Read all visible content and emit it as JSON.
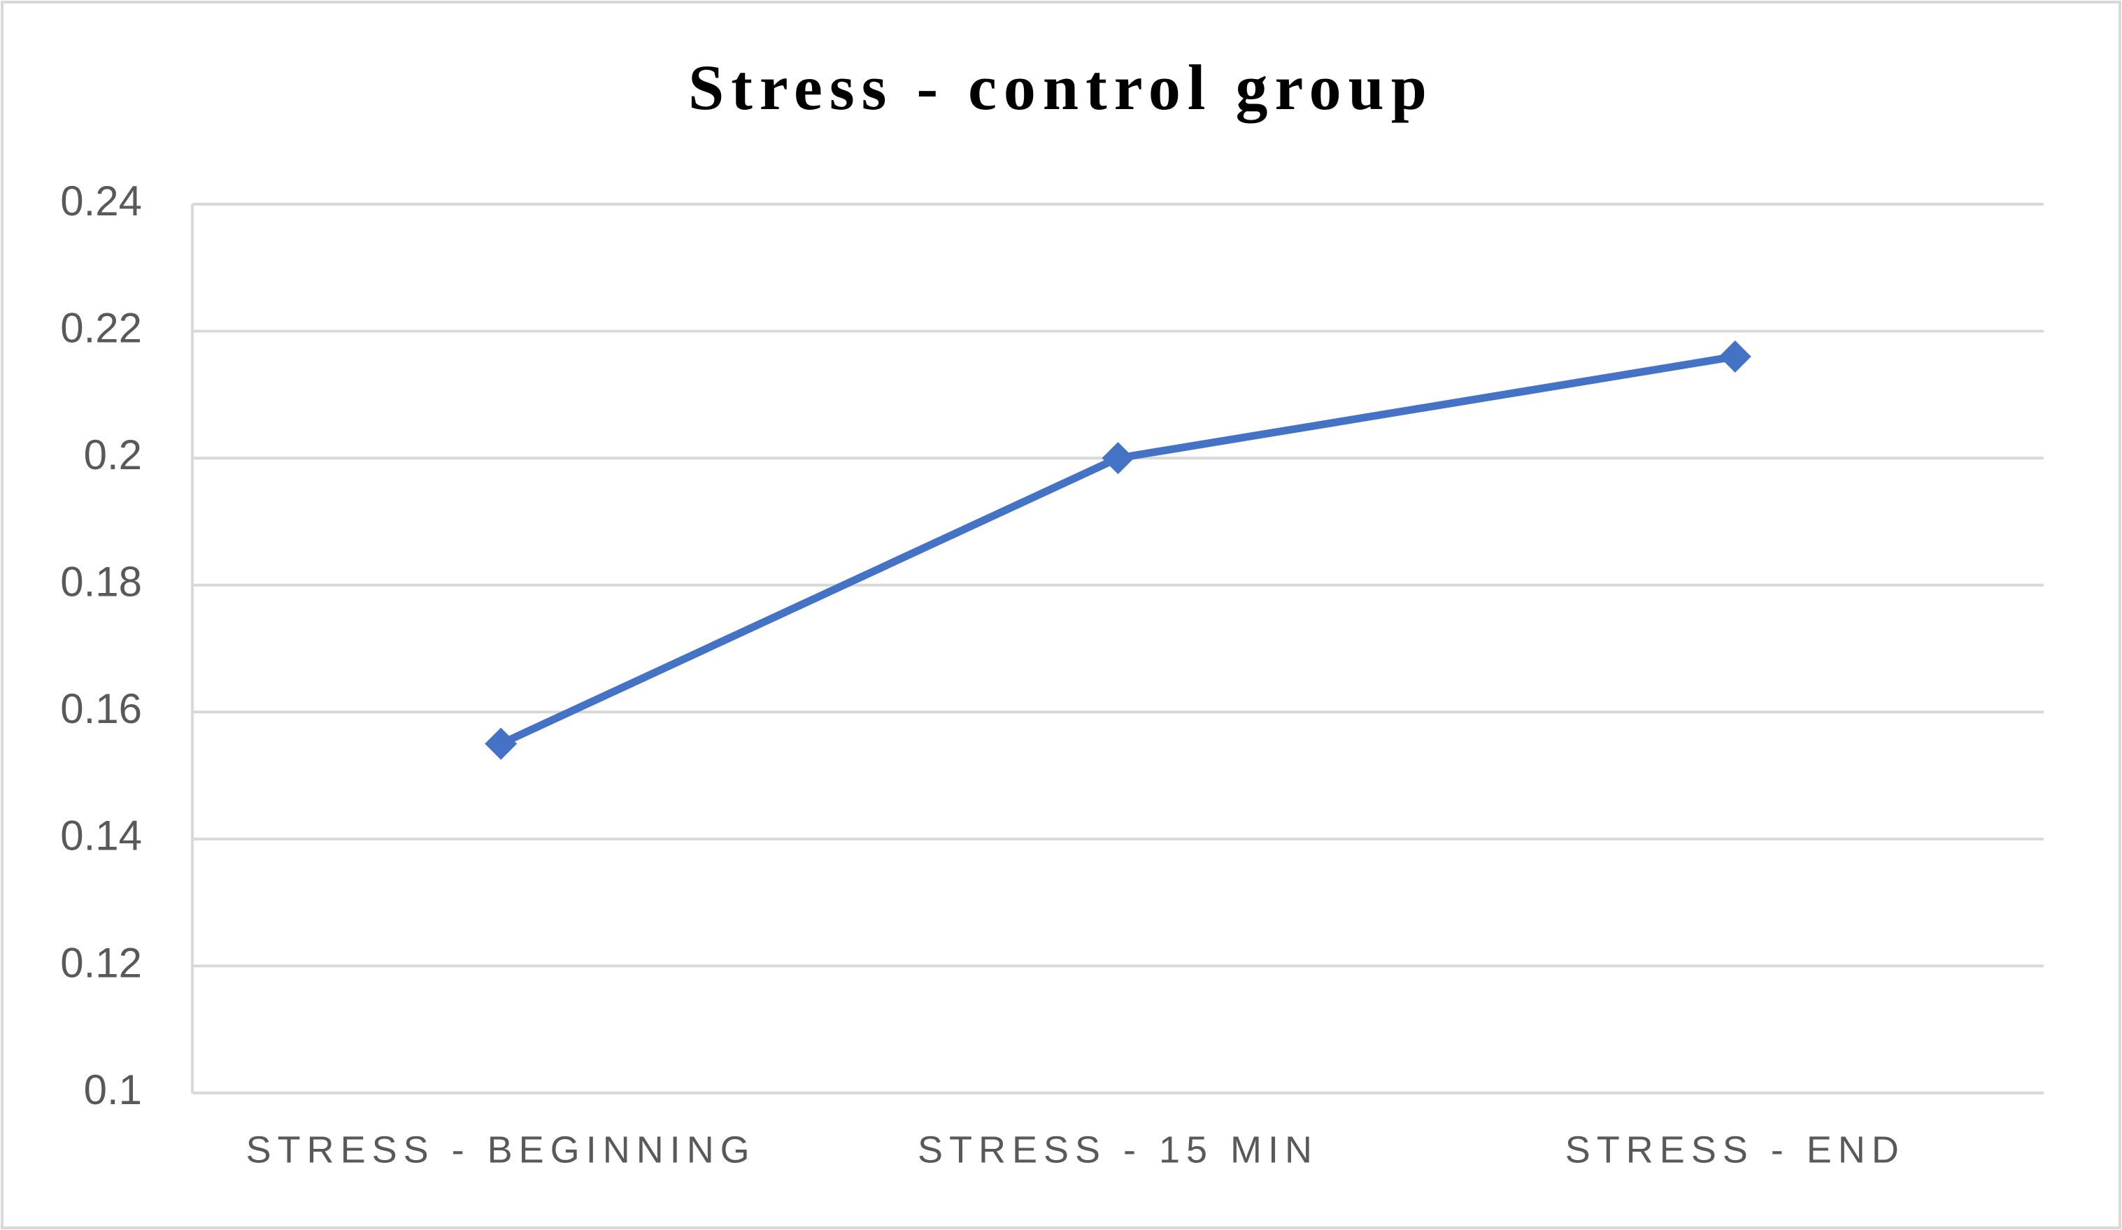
{
  "chart_data": {
    "type": "line",
    "title": "Stress - control group",
    "categories": [
      "STRESS - BEGINNING",
      "STRESS - 15 MIN",
      "STRESS - END"
    ],
    "values": [
      0.155,
      0.2,
      0.216
    ],
    "color": "#4472c4",
    "ylim": [
      0.1,
      0.24
    ],
    "yticks": [
      0.1,
      0.12,
      0.14,
      0.16,
      0.18,
      0.2,
      0.22,
      0.24
    ],
    "grid": true
  }
}
